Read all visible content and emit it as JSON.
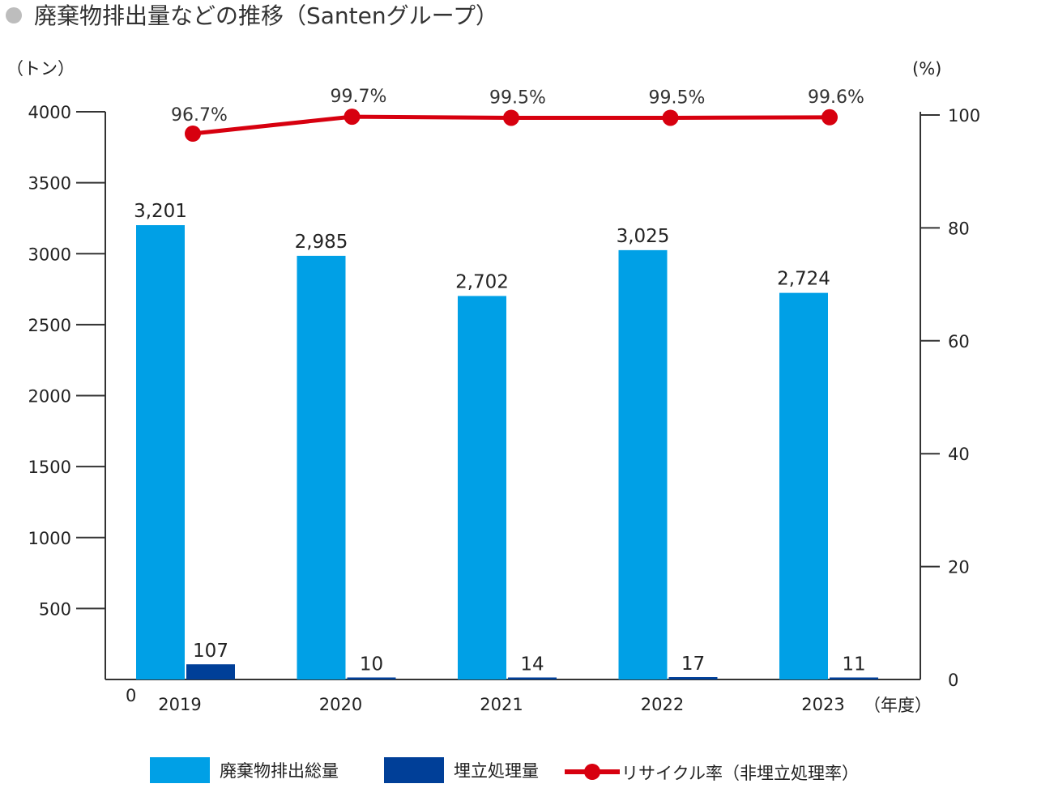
{
  "title": "廃棄物排出量などの推移（Santenグループ）",
  "left_unit": "（トン）",
  "right_unit": "(%)",
  "x_unit": "（年度）",
  "zero_label": "0",
  "colors": {
    "total": "#00a0e6",
    "landfill": "#003f98",
    "rate": "#d7000f",
    "axis": "#333333",
    "title_bullet": "#bdbdbd"
  },
  "legend": [
    {
      "label": "廃棄物排出総量",
      "color": "#00a0e6"
    },
    {
      "label": "埋立処理量",
      "color": "#003f98"
    },
    {
      "label": "リサイクル率（非埋立処理率）",
      "color": "#d7000f"
    }
  ],
  "chart_data": {
    "type": "bar",
    "title": "廃棄物排出量などの推移（Santenグループ）",
    "categories": [
      "2019",
      "2020",
      "2021",
      "2022",
      "2023"
    ],
    "series": [
      {
        "name": "廃棄物排出総量",
        "type": "bar",
        "axis": "left",
        "values": [
          3201,
          2985,
          2702,
          3025,
          2724
        ],
        "labels": [
          "3,201",
          "2,985",
          "2,702",
          "3,025",
          "2,724"
        ]
      },
      {
        "name": "埋立処理量",
        "type": "bar",
        "axis": "left",
        "values": [
          107,
          10,
          14,
          17,
          11
        ],
        "labels": [
          "107",
          "10",
          "14",
          "17",
          "11"
        ]
      },
      {
        "name": "リサイクル率（非埋立処理率）",
        "type": "line",
        "axis": "right",
        "values": [
          96.7,
          99.7,
          99.5,
          99.5,
          99.6
        ],
        "labels": [
          "96.7%",
          "99.7%",
          "99.5%",
          "99.5%",
          "99.6%"
        ]
      }
    ],
    "ylim_left": [
      0,
      4000
    ],
    "yticks_left": [
      500,
      1000,
      1500,
      2000,
      2500,
      3000,
      3500,
      4000
    ],
    "ylim_right": [
      0,
      100
    ],
    "yticks_right": [
      0,
      20,
      40,
      60,
      80,
      100
    ],
    "grid": false,
    "legend_position": "bottom"
  }
}
